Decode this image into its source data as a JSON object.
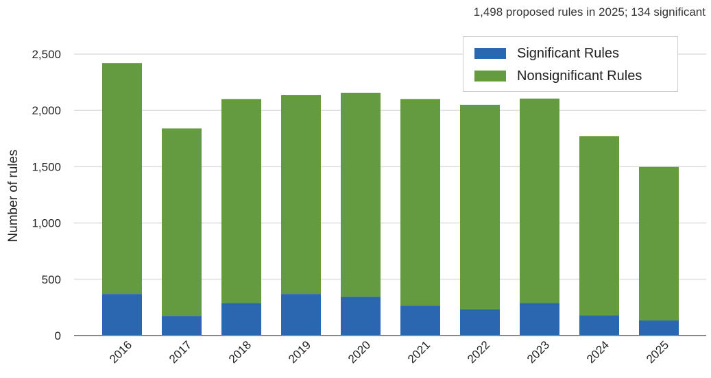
{
  "chart_data": {
    "type": "bar",
    "stacked": true,
    "annotation": "1,498 proposed rules in 2025; 134 significant",
    "title": "",
    "xlabel": "",
    "ylabel": "Number of rules",
    "ylim": [
      0,
      2500
    ],
    "yticks": [
      0,
      500,
      1000,
      1500,
      2000,
      2500
    ],
    "ytick_labels": [
      "0",
      "500",
      "1,000",
      "1,500",
      "2,000",
      "2,500"
    ],
    "grid": true,
    "legend_position": "top-right",
    "categories": [
      "2016",
      "2017",
      "2018",
      "2019",
      "2020",
      "2021",
      "2022",
      "2023",
      "2024",
      "2025"
    ],
    "series": [
      {
        "name": "Significant Rules",
        "color": "#2b66b1",
        "values": [
          370,
          175,
          290,
          370,
          345,
          265,
          235,
          290,
          180,
          134
        ]
      },
      {
        "name": "Nonsignificant Rules",
        "color": "#649b41",
        "values": [
          2050,
          1665,
          1810,
          1765,
          1810,
          1835,
          1815,
          1815,
          1590,
          1364
        ]
      }
    ]
  }
}
